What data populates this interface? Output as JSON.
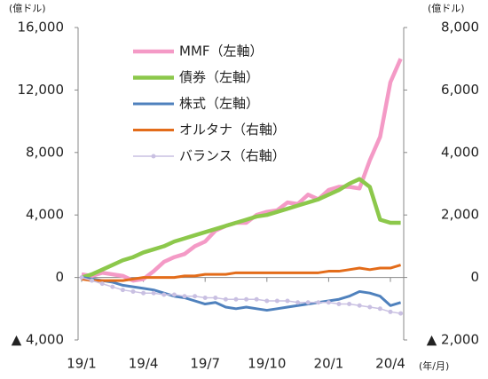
{
  "chart_data": {
    "type": "line",
    "y_unit": "(億ドル)",
    "y2_unit": "(億ドル)",
    "x_unit": "(年/月)",
    "categories": [
      "19/1",
      null,
      null,
      null,
      null,
      null,
      "19/4",
      null,
      null,
      null,
      null,
      null,
      "19/7",
      null,
      null,
      null,
      null,
      null,
      "19/10",
      null,
      null,
      null,
      null,
      null,
      "20/1",
      null,
      null,
      null,
      null,
      null,
      "20/4",
      null
    ],
    "ylim": [
      -4000,
      16000
    ],
    "yticks": [
      {
        "value": -4000,
        "label": "▲ 4,000"
      },
      0,
      {
        "value": 4000,
        "label": "4,000"
      },
      {
        "value": 8000,
        "label": "8,000"
      },
      {
        "value": 12000,
        "label": "12,000"
      },
      {
        "value": 16000,
        "label": "16,000"
      }
    ],
    "y2lim": [
      -2000,
      8000
    ],
    "y2ticks": [
      {
        "value": -2000,
        "label": "▲ 2,000"
      },
      0,
      {
        "value": 2000,
        "label": "2,000"
      },
      {
        "value": 4000,
        "label": "4,000"
      },
      {
        "value": 6000,
        "label": "6,000"
      },
      {
        "value": 8000,
        "label": "8,000"
      }
    ],
    "series": [
      {
        "name": "MMF（左軸）",
        "color": "#f49ac6",
        "values": [
          200,
          100,
          300,
          200,
          100,
          -200,
          -100,
          400,
          1000,
          1300,
          1500,
          2000,
          2300,
          3000,
          3300,
          3500,
          3500,
          4000,
          4200,
          4300,
          4800,
          4700,
          5300,
          5000,
          5600,
          5800,
          5800,
          5700,
          7500,
          9000,
          12500,
          14000
        ]
      },
      {
        "name": "債券（左軸）",
        "color": "#8cc84b",
        "values": [
          0,
          200,
          500,
          800,
          1100,
          1300,
          1600,
          1800,
          2000,
          2300,
          2500,
          2700,
          2900,
          3100,
          3300,
          3500,
          3700,
          3900,
          4000,
          4200,
          4400,
          4600,
          4800,
          5000,
          5300,
          5600,
          6000,
          6300,
          5800,
          3700,
          3500,
          3500
        ]
      },
      {
        "name": "株式（左軸）",
        "color": "#4f81bd",
        "values": [
          0,
          -100,
          -200,
          -300,
          -500,
          -600,
          -700,
          -800,
          -1000,
          -1200,
          -1300,
          -1500,
          -1700,
          -1600,
          -1900,
          -2000,
          -1900,
          -2000,
          -2100,
          -2000,
          -1900,
          -1800,
          -1700,
          -1600,
          -1500,
          -1400,
          -1200,
          -900,
          -1000,
          -1200,
          -1800,
          -1600
        ]
      },
      {
        "name": "オルタナ（右軸）",
        "color": "#e36c1a",
        "axis": "y2",
        "values": [
          -50,
          -100,
          -100,
          -100,
          -100,
          -50,
          0,
          0,
          0,
          0,
          50,
          50,
          100,
          100,
          100,
          150,
          150,
          150,
          150,
          150,
          150,
          150,
          150,
          150,
          200,
          200,
          250,
          300,
          250,
          300,
          300,
          400
        ]
      },
      {
        "name": "バランス（右軸）",
        "color": "#c9c0e2",
        "axis": "y2",
        "markers": true,
        "values": [
          0,
          -100,
          -200,
          -300,
          -400,
          -450,
          -500,
          -500,
          -550,
          -550,
          -600,
          -600,
          -650,
          -650,
          -700,
          -700,
          -700,
          -700,
          -750,
          -750,
          -750,
          -800,
          -800,
          -800,
          -800,
          -850,
          -850,
          -900,
          -950,
          -1000,
          -1100,
          -1150
        ]
      }
    ]
  }
}
